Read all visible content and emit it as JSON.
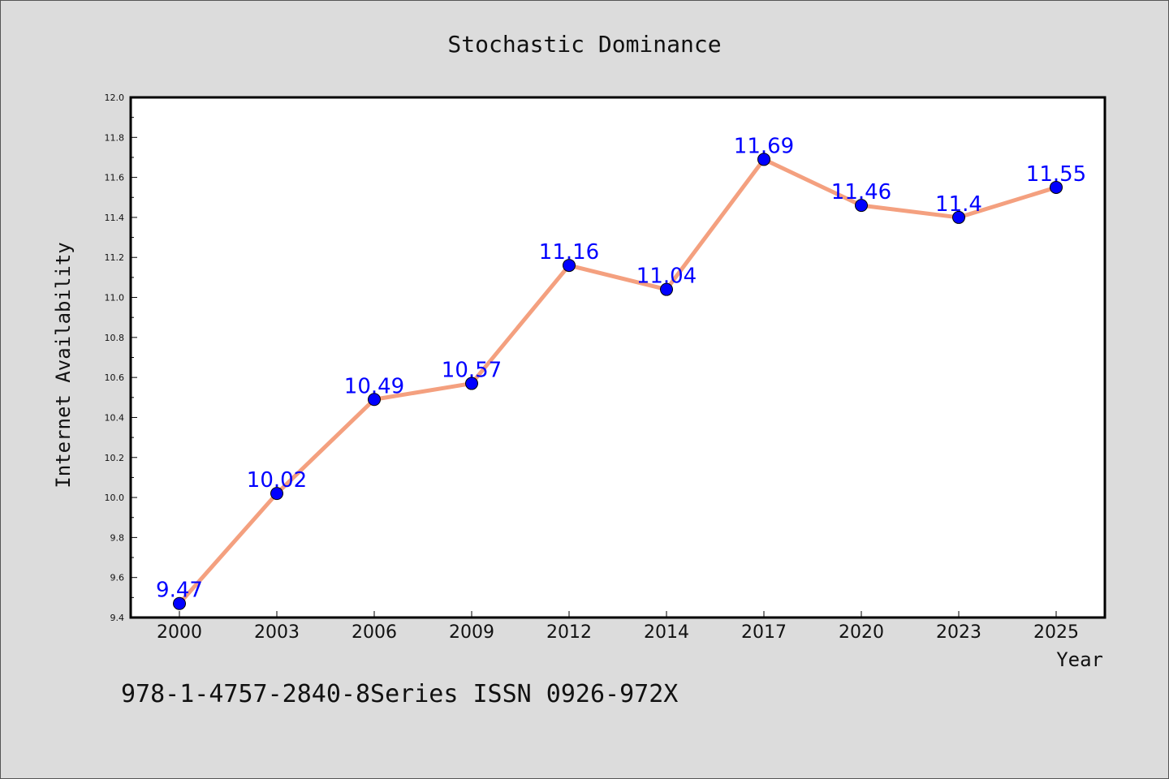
{
  "colors": {
    "background": "#dcdcdc",
    "plot_background": "#ffffff",
    "line": "#f4a07f",
    "marker": "#0000ff",
    "label": "#0000ff",
    "axis": "#000000"
  },
  "footer_text": "978-1-4757-2840-8Series ISSN 0926-972X",
  "chart_data": {
    "type": "line",
    "title": "Stochastic Dominance",
    "xlabel": "Year",
    "ylabel": "Internet Availability",
    "categories": [
      "2000",
      "2003",
      "2006",
      "2009",
      "2012",
      "2014",
      "2017",
      "2020",
      "2023",
      "2025"
    ],
    "series": [
      {
        "values": [
          9.47,
          10.02,
          10.49,
          10.57,
          11.16,
          11.04,
          11.69,
          11.46,
          11.4,
          11.55
        ],
        "labels": [
          "9.47",
          "10.02",
          "10.49",
          "10.57",
          "11.16",
          "11.04",
          "11.69",
          "11.46",
          "11.4",
          "11.55"
        ]
      }
    ],
    "ylim": [
      9.4,
      12.0
    ],
    "yticks": [
      "9.4",
      "9.6",
      "9.8",
      "10.0",
      "10.2",
      "10.4",
      "10.6",
      "10.8",
      "11.0",
      "11.2",
      "11.4",
      "11.6",
      "11.8",
      "12.0"
    ],
    "grid": false,
    "legend": "none"
  }
}
